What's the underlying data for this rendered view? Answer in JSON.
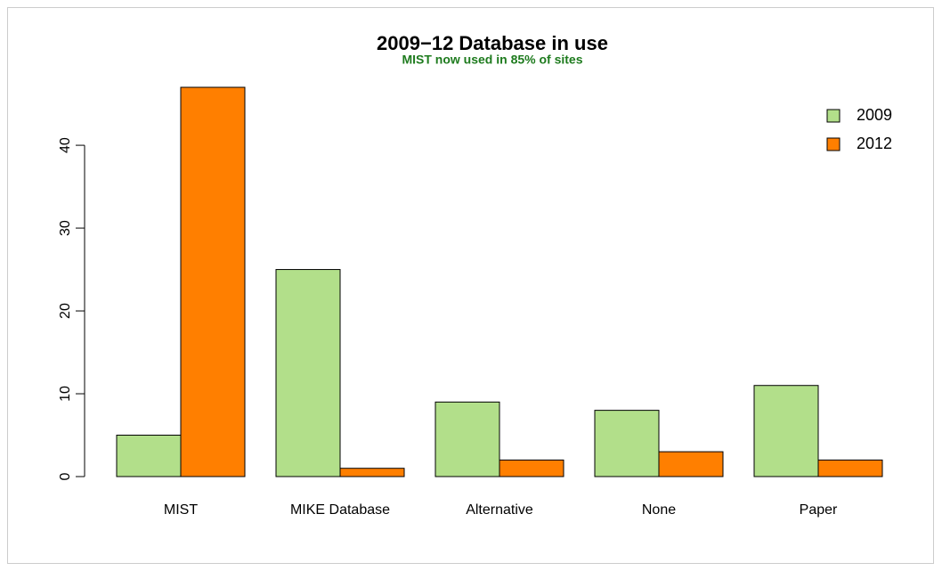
{
  "chart_data": {
    "type": "bar",
    "title": "2009−12 Database in use",
    "subtitle": "MIST now used in 85% of sites",
    "categories": [
      "MIST",
      "MIKE Database",
      "Alternative",
      "None",
      "Paper"
    ],
    "series": [
      {
        "name": "2009",
        "color": "#b2df8a",
        "values": [
          5,
          25,
          9,
          8,
          11
        ]
      },
      {
        "name": "2012",
        "color": "#ff7f00",
        "values": [
          47,
          1,
          2,
          3,
          2
        ]
      }
    ],
    "ylim": [
      0,
      47
    ],
    "yticks": [
      0,
      10,
      20,
      30,
      40
    ],
    "legend": "top-right"
  }
}
